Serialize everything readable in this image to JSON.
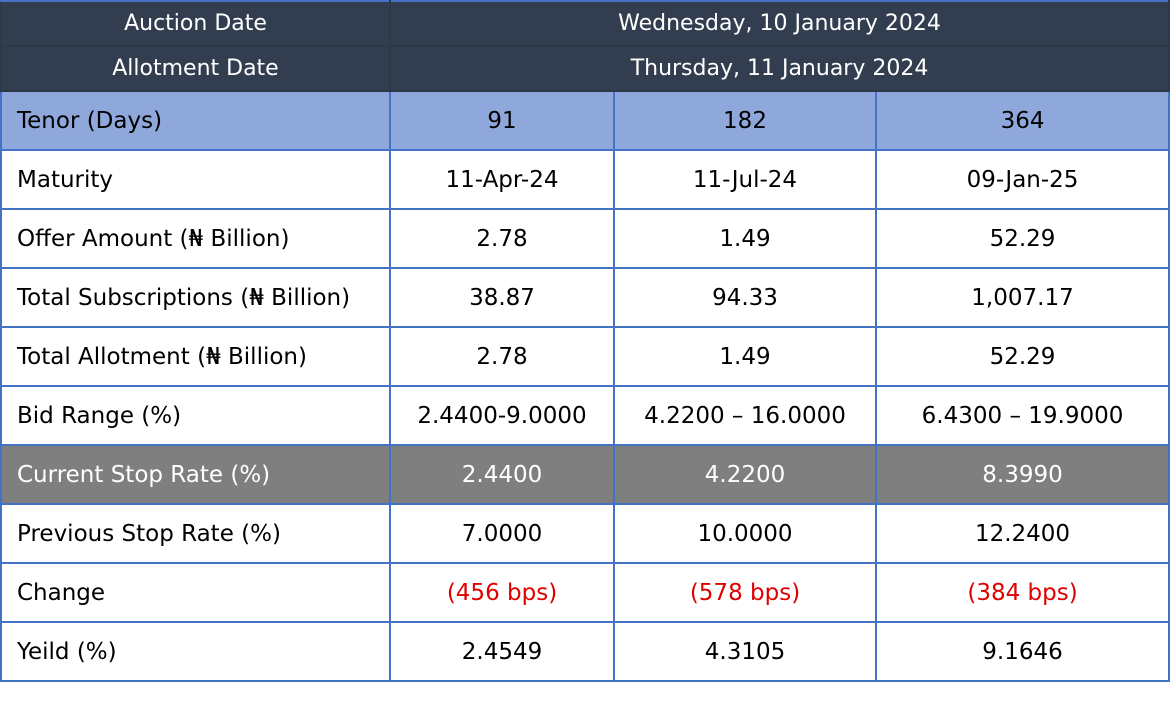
{
  "header": {
    "auction_label": "Auction Date",
    "auction_value": "Wednesday, 10 January 2024",
    "allotment_label": "Allotment Date",
    "allotment_value": "Thursday, 11 January 2024"
  },
  "rows": [
    {
      "label": "Tenor (Days)",
      "values": [
        "91",
        "182",
        "364"
      ]
    },
    {
      "label": "Maturity",
      "values": [
        "11-Apr-24",
        "11-Jul-24",
        "09-Jan-25"
      ]
    },
    {
      "label": "Offer Amount (₦ Billion)",
      "values": [
        "2.78",
        "1.49",
        "52.29"
      ]
    },
    {
      "label": "Total Subscriptions (₦ Billion)",
      "values": [
        "38.87",
        "94.33",
        "1,007.17"
      ]
    },
    {
      "label": "Total Allotment (₦ Billion)",
      "values": [
        "2.78",
        "1.49",
        "52.29"
      ]
    },
    {
      "label": "Bid Range (%)",
      "values": [
        "2.4400-9.0000",
        "4.2200 – 16.0000",
        "6.4300 – 19.9000"
      ]
    },
    {
      "label": "Current Stop Rate (%)",
      "values": [
        "2.4400",
        "4.2200",
        "8.3990"
      ]
    },
    {
      "label": "Previous Stop Rate (%)",
      "values": [
        "7.0000",
        "10.0000",
        "12.2400"
      ]
    },
    {
      "label": "Change",
      "values": [
        "(456 bps)",
        "(578 bps)",
        "(384 bps)"
      ]
    },
    {
      "label": "Yeild (%)",
      "values": [
        "2.4549",
        "4.3105",
        "9.1646"
      ]
    }
  ],
  "colors": {
    "header_bg": "#323e4f",
    "tenor_bg": "#8fa8dc",
    "stop_rate_bg": "#7f7f7f",
    "border": "#4472c4",
    "negative_text": "#e00000"
  }
}
